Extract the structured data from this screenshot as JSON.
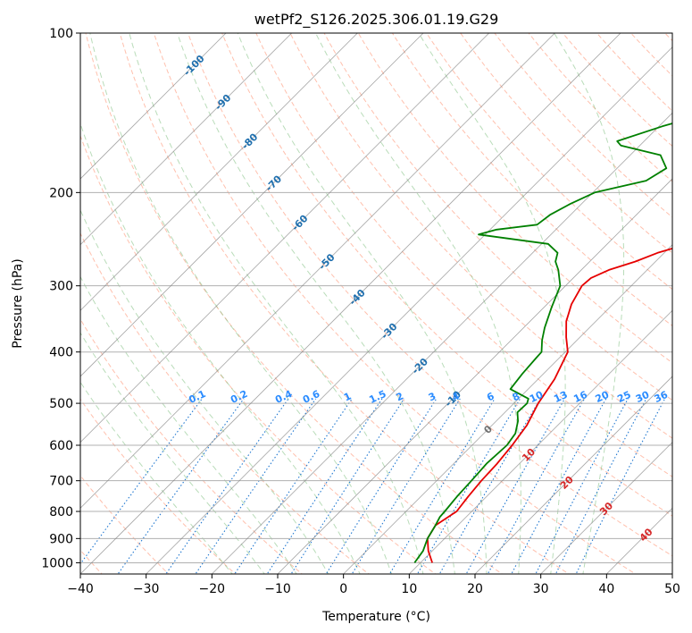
{
  "chart_data": {
    "type": "line",
    "title": "wetPf2_S126.2025.306.01.19.G29",
    "xlabel": "Temperature (°C)",
    "ylabel": "Pressure (hPa)",
    "xlim": [
      -40,
      50
    ],
    "ylim": [
      1050,
      100
    ],
    "x_ticks": [
      -40,
      -30,
      -20,
      -10,
      0,
      10,
      20,
      30,
      40,
      50
    ],
    "x_tick_labels": [
      "−40",
      "−30",
      "−20",
      "−10",
      "0",
      "10",
      "20",
      "30",
      "40",
      "50"
    ],
    "y_ticks": [
      100,
      200,
      300,
      400,
      500,
      600,
      700,
      800,
      900,
      1000
    ],
    "y_tick_labels": [
      "100",
      "200",
      "300",
      "400",
      "500",
      "600",
      "700",
      "800",
      "900",
      "1000"
    ],
    "grid": true,
    "colors": {
      "temperature": "#e60000",
      "dewpoint": "#008000",
      "isotherm": "#808080",
      "dry_adiabat": "#ff8c69",
      "moist_adiabat": "#7fbf7f",
      "mixing_ratio": "#1f77d0",
      "isotherm_label_cold": "#1f6fae",
      "isotherm_label_warm": "#d62728",
      "mixing_label": "#2b8cff"
    },
    "series": [
      {
        "name": "Temperature",
        "points": [
          [
            11.8,
            1000
          ],
          [
            9.4,
            950
          ],
          [
            7.4,
            900
          ],
          [
            6.6,
            850
          ],
          [
            7.7,
            800
          ],
          [
            7.2,
            750
          ],
          [
            6.8,
            700
          ],
          [
            6.6,
            650
          ],
          [
            6.1,
            600
          ],
          [
            5.3,
            550
          ],
          [
            3.7,
            500
          ],
          [
            2.5,
            450
          ],
          [
            0.4,
            400
          ],
          [
            -2.1,
            375
          ],
          [
            -4.5,
            350
          ],
          [
            -6.3,
            325
          ],
          [
            -7.5,
            300
          ],
          [
            -7.3,
            290
          ],
          [
            -5.8,
            280
          ],
          [
            -3.1,
            270
          ],
          [
            -1.0,
            260
          ],
          [
            2.2,
            250
          ],
          [
            4.2,
            240
          ],
          [
            5.5,
            230
          ],
          [
            6.4,
            220
          ],
          [
            7.4,
            210
          ],
          [
            8.4,
            200
          ],
          [
            10.3,
            190
          ],
          [
            11.6,
            180
          ],
          [
            12.9,
            170
          ],
          [
            14.3,
            160
          ],
          [
            15.6,
            150
          ],
          [
            16.4,
            140
          ],
          [
            18.0,
            130
          ],
          [
            19.6,
            120
          ],
          [
            20.4,
            110
          ],
          [
            21.9,
            100
          ]
        ]
      },
      {
        "name": "Dewpoint",
        "points": [
          [
            9.1,
            1000
          ],
          [
            8.6,
            950
          ],
          [
            7.4,
            900
          ],
          [
            6.6,
            850
          ],
          [
            6.0,
            820
          ],
          [
            5.9,
            800
          ],
          [
            5.5,
            750
          ],
          [
            5.3,
            700
          ],
          [
            5.0,
            650
          ],
          [
            5.3,
            600
          ],
          [
            4.8,
            570
          ],
          [
            3.3,
            540
          ],
          [
            1.9,
            520
          ],
          [
            2.0,
            500
          ],
          [
            1.5,
            490
          ],
          [
            -2.7,
            470
          ],
          [
            -3.2,
            440
          ],
          [
            -3.5,
            410
          ],
          [
            -3.6,
            400
          ],
          [
            -5.3,
            380
          ],
          [
            -6.8,
            360
          ],
          [
            -8.8,
            330
          ],
          [
            -10.8,
            300
          ],
          [
            -13.5,
            280
          ],
          [
            -15.2,
            270
          ],
          [
            -16.2,
            260
          ],
          [
            -19.0,
            250
          ],
          [
            -31.0,
            240
          ],
          [
            -29.0,
            235
          ],
          [
            -23.6,
            230
          ],
          [
            -23.1,
            220
          ],
          [
            -21.7,
            210
          ],
          [
            -19.7,
            200
          ],
          [
            -13.7,
            190
          ],
          [
            -12.5,
            180
          ],
          [
            -15.4,
            170
          ],
          [
            -22.9,
            163
          ],
          [
            -24.1,
            160
          ],
          [
            -19.5,
            150
          ],
          [
            -13.4,
            140
          ],
          [
            -11.2,
            130
          ],
          [
            -9.8,
            120
          ],
          [
            -7.8,
            110
          ],
          [
            -5.6,
            100
          ]
        ]
      }
    ],
    "isotherms": [
      -100,
      -90,
      -80,
      -70,
      -60,
      -50,
      -40,
      -30,
      -20,
      -10,
      0,
      10,
      20,
      30,
      40
    ],
    "isotherm_labels": [
      "-100",
      "-90",
      "-80",
      "-70",
      "-60",
      "-50",
      "-40",
      "-30",
      "-20",
      "-10",
      "0",
      "10",
      "20",
      "30",
      "40"
    ],
    "dry_adiabats_C": [
      -50,
      -40,
      -30,
      -20,
      -10,
      0,
      10,
      20,
      30,
      40,
      50,
      60,
      70,
      80,
      90,
      100,
      110,
      120,
      130,
      140,
      150,
      160,
      170,
      180,
      190,
      200,
      210,
      220
    ],
    "moist_adiabats_C": [
      -20,
      -15,
      -10,
      -5,
      0,
      5,
      10,
      15,
      20,
      25,
      30,
      35
    ],
    "mixing_ratios_gkg": [
      0.1,
      0.2,
      0.4,
      0.6,
      1,
      1.5,
      2,
      3,
      4,
      6,
      8,
      10,
      13,
      16,
      20,
      25,
      30,
      36
    ],
    "mixing_ratio_labels": [
      "0.1",
      "0.2",
      "0.4",
      "0.6",
      "1",
      "1.5",
      "2",
      "3",
      "4",
      "6",
      "8",
      "10",
      "13",
      "16",
      "20",
      "25",
      "30",
      "36"
    ]
  }
}
